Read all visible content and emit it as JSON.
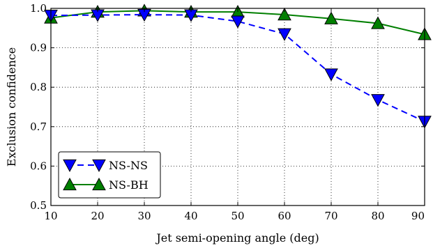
{
  "chart_data": {
    "type": "line",
    "xlabel": "Jet semi-opening angle (deg)",
    "ylabel": "Exclusion confidence",
    "xlim": [
      10,
      90
    ],
    "ylim": [
      0.5,
      1.0
    ],
    "xticks": [
      10,
      20,
      30,
      40,
      50,
      60,
      70,
      80,
      90
    ],
    "yticks": [
      0.5,
      0.6,
      0.7,
      0.8,
      0.9,
      1.0
    ],
    "xtick_labels": [
      "10",
      "20",
      "30",
      "40",
      "50",
      "60",
      "70",
      "80",
      "90"
    ],
    "ytick_labels": [
      "0.5",
      "0.6",
      "0.7",
      "0.8",
      "0.9",
      "1.0"
    ],
    "grid": true,
    "legend_position": "lower-left",
    "x": [
      10,
      20,
      30,
      40,
      50,
      60,
      70,
      80,
      90
    ],
    "series": [
      {
        "name": "NS-NS",
        "values": [
          0.982,
          0.983,
          0.984,
          0.983,
          0.967,
          0.935,
          0.833,
          0.768,
          0.713
        ],
        "color": "#0000ff",
        "line_style": "dashed",
        "marker": "triangle-down"
      },
      {
        "name": "NS-BH",
        "values": [
          0.976,
          0.991,
          0.994,
          0.991,
          0.991,
          0.984,
          0.974,
          0.962,
          0.934
        ],
        "color": "#007f00",
        "line_style": "solid",
        "marker": "triangle-up"
      }
    ]
  }
}
